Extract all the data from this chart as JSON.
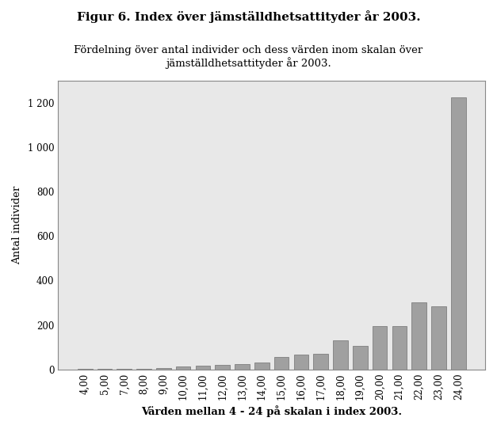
{
  "title": "Figur 6. Index över jämställdhetsattityder år 2003.",
  "subtitle": "Fördelning över antal individer och dess värden inom skalan över\njämställdhetsattityder år 2003.",
  "xlabel": "Värden mellan 4 - 24 på skalan i index 2003.",
  "ylabel": "Antal individer",
  "categories": [
    "4,00",
    "5,00",
    "7,00",
    "8,00",
    "9,00",
    "10,00",
    "11,00",
    "12,00",
    "13,00",
    "14,00",
    "15,00",
    "16,00",
    "17,00",
    "18,00",
    "19,00",
    "20,00",
    "21,00",
    "22,00",
    "23,00",
    "24,00"
  ],
  "values": [
    2,
    3,
    2,
    3,
    5,
    13,
    15,
    22,
    25,
    30,
    55,
    65,
    70,
    130,
    105,
    195,
    195,
    300,
    283,
    1225
  ],
  "bar_color": "#a0a0a0",
  "bar_edge_color": "#707070",
  "ylim": [
    0,
    1300
  ],
  "yticks": [
    0,
    200,
    400,
    600,
    800,
    1000,
    1200
  ],
  "ytick_labels": [
    "0",
    "200",
    "400",
    "600",
    "800",
    "1 000",
    "1 200"
  ],
  "figure_bg_color": "#ffffff",
  "plot_bg_color": "#e8e8e8",
  "title_fontsize": 11,
  "subtitle_fontsize": 9.5,
  "label_fontsize": 9.5,
  "tick_fontsize": 8.5
}
